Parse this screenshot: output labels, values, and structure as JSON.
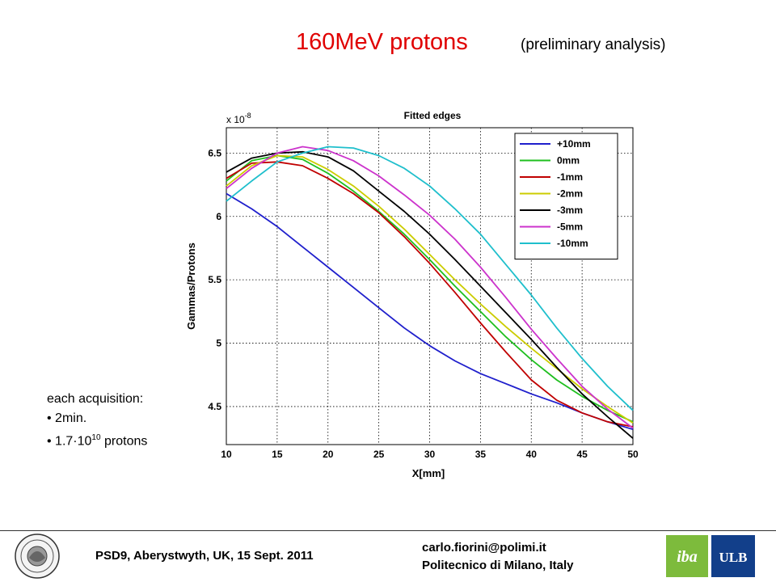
{
  "header": {
    "title": "160MeV protons",
    "subtitle": "(preliminary analysis)"
  },
  "notes": {
    "heading": "each acquisition:",
    "item1": "• 2min.",
    "item2_prefix": "• 1.7·10",
    "item2_exp": "10",
    "item2_suffix": " protons"
  },
  "footer": {
    "conference": "PSD9, Aberystwyth, UK, 15 Sept. 2011",
    "email": "carlo.fiorini@polimi.it",
    "affiliation": "Politecnico di Milano, Italy",
    "logo_left": "Politecnico di Milano seal",
    "logo_iba": "iba",
    "logo_ulb": "ULB"
  },
  "chart_data": {
    "type": "line",
    "title": "Fitted edges",
    "xlabel": "X[mm]",
    "ylabel": "Gammas/Protons",
    "multiplier": "x 10",
    "multiplier_exp": "-8",
    "xlim": [
      10,
      50
    ],
    "ylim": [
      4.2,
      6.7
    ],
    "xticks": [
      10,
      15,
      20,
      25,
      30,
      35,
      40,
      45,
      50
    ],
    "yticks": [
      4.5,
      5,
      5.5,
      6,
      6.5
    ],
    "grid": true,
    "legend_position": "top-right",
    "x": [
      10,
      12.5,
      15,
      17.5,
      20,
      22.5,
      25,
      27.5,
      30,
      32.5,
      35,
      37.5,
      40,
      42.5,
      45,
      47.5,
      50
    ],
    "series": [
      {
        "name": "+10mm",
        "color": "#1f1fcc",
        "values": [
          6.18,
          6.06,
          5.92,
          5.76,
          5.6,
          5.44,
          5.28,
          5.12,
          4.98,
          4.86,
          4.76,
          4.68,
          4.6,
          4.53,
          4.45,
          4.38,
          4.32
        ]
      },
      {
        "name": "0mm",
        "color": "#1fbf1f",
        "values": [
          6.28,
          6.44,
          6.48,
          6.45,
          6.34,
          6.2,
          6.04,
          5.86,
          5.66,
          5.45,
          5.25,
          5.05,
          4.87,
          4.71,
          4.58,
          4.47,
          4.38
        ]
      },
      {
        "name": "-1mm",
        "color": "#c00000",
        "values": [
          6.3,
          6.42,
          6.43,
          6.4,
          6.3,
          6.18,
          6.03,
          5.84,
          5.63,
          5.4,
          5.16,
          4.93,
          4.71,
          4.55,
          4.45,
          4.38,
          4.34
        ]
      },
      {
        "name": "-2mm",
        "color": "#cccc00",
        "values": [
          6.24,
          6.4,
          6.48,
          6.47,
          6.37,
          6.24,
          6.08,
          5.9,
          5.7,
          5.5,
          5.31,
          5.13,
          4.96,
          4.8,
          4.64,
          4.5,
          4.37
        ]
      },
      {
        "name": "-3mm",
        "color": "#000000",
        "values": [
          6.35,
          6.46,
          6.5,
          6.51,
          6.47,
          6.36,
          6.2,
          6.04,
          5.86,
          5.66,
          5.45,
          5.24,
          5.03,
          4.81,
          4.6,
          4.42,
          4.25
        ]
      },
      {
        "name": "-5mm",
        "color": "#cc33cc",
        "values": [
          6.22,
          6.38,
          6.5,
          6.55,
          6.52,
          6.44,
          6.32,
          6.17,
          6.01,
          5.82,
          5.6,
          5.36,
          5.11,
          4.88,
          4.66,
          4.48,
          4.33
        ]
      },
      {
        "name": "-10mm",
        "color": "#1fbfcc",
        "values": [
          6.12,
          6.28,
          6.43,
          6.5,
          6.55,
          6.54,
          6.48,
          6.38,
          6.24,
          6.06,
          5.86,
          5.62,
          5.38,
          5.12,
          4.88,
          4.66,
          4.47
        ]
      }
    ]
  }
}
